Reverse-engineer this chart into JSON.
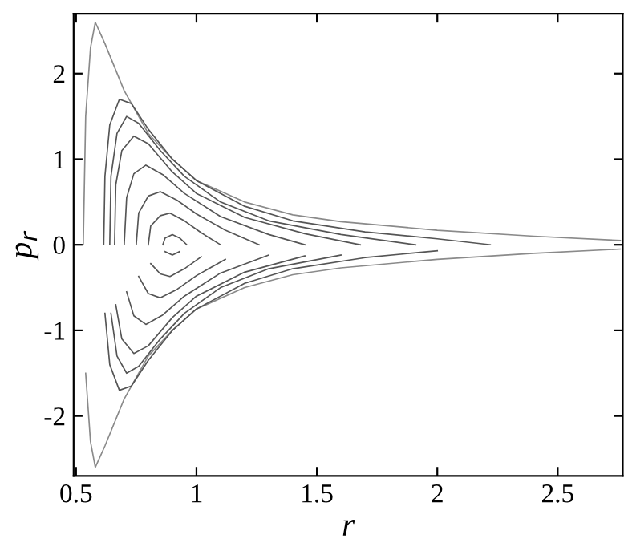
{
  "chart_data": {
    "type": "line",
    "xlabel": "r",
    "ylabel": "p$_{r}$",
    "xlim": [
      0.49,
      2.77
    ],
    "ylim": [
      -2.7,
      2.7
    ],
    "xticks": [
      0.5,
      1,
      1.5,
      2,
      2.5
    ],
    "yticks": [
      -2,
      -1,
      0,
      1,
      2
    ],
    "grid": false,
    "legend": false,
    "series": [
      {
        "color": "#8a8a8a",
        "x": [
          0.53,
          0.54,
          0.56,
          0.58,
          0.62,
          0.7,
          0.8,
          0.9,
          1.0,
          1.2,
          1.4,
          1.6,
          2.0,
          2.4,
          2.76
        ],
        "values": [
          0,
          1.5,
          2.3,
          2.6,
          2.35,
          1.8,
          1.3,
          1.0,
          0.75,
          0.5,
          0.35,
          0.27,
          0.17,
          0.1,
          0.05
        ]
      },
      {
        "color": "#8a8a8a",
        "x": [
          0.54,
          0.56,
          0.58,
          0.62,
          0.7,
          0.8,
          0.9,
          1.0,
          1.2,
          1.4,
          1.6,
          2.0,
          2.4,
          2.76
        ],
        "values": [
          -1.5,
          -2.3,
          -2.6,
          -2.35,
          -1.8,
          -1.3,
          -1.0,
          -0.75,
          -0.5,
          -0.35,
          -0.27,
          -0.17,
          -0.1,
          -0.05
        ]
      },
      {
        "color": "#555555",
        "x": [
          0.615,
          0.62,
          0.64,
          0.68,
          0.73,
          0.8,
          0.9,
          1.0,
          1.2,
          1.4,
          1.7,
          2.0,
          2.22
        ],
        "values": [
          0,
          0.8,
          1.4,
          1.7,
          1.65,
          1.35,
          1.0,
          0.75,
          0.45,
          0.28,
          0.15,
          0.07,
          0
        ]
      },
      {
        "color": "#555555",
        "x": [
          0.62,
          0.64,
          0.68,
          0.73,
          0.8,
          0.9,
          1.0,
          1.2,
          1.4,
          1.7,
          2.0
        ],
        "values": [
          -0.8,
          -1.4,
          -1.7,
          -1.65,
          -1.35,
          -1.0,
          -0.75,
          -0.45,
          -0.28,
          -0.15,
          -0.07
        ]
      },
      {
        "color": "#555555",
        "x": [
          0.64,
          0.645,
          0.67,
          0.71,
          0.76,
          0.85,
          0.95,
          1.1,
          1.3,
          1.6,
          1.91
        ],
        "values": [
          0,
          0.8,
          1.3,
          1.5,
          1.42,
          1.1,
          0.8,
          0.5,
          0.28,
          0.12,
          0
        ]
      },
      {
        "color": "#555555",
        "x": [
          0.645,
          0.67,
          0.71,
          0.76,
          0.85,
          0.95,
          1.1,
          1.3,
          1.6
        ],
        "values": [
          -0.8,
          -1.3,
          -1.5,
          -1.42,
          -1.1,
          -0.8,
          -0.5,
          -0.28,
          -0.12
        ]
      },
      {
        "color": "#555555",
        "x": [
          0.66,
          0.665,
          0.69,
          0.74,
          0.8,
          0.9,
          1.0,
          1.2,
          1.45,
          1.68
        ],
        "values": [
          0,
          0.7,
          1.1,
          1.27,
          1.18,
          0.85,
          0.6,
          0.32,
          0.13,
          0
        ]
      },
      {
        "color": "#555555",
        "x": [
          0.665,
          0.69,
          0.74,
          0.8,
          0.9,
          1.0,
          1.2,
          1.45
        ],
        "values": [
          -0.7,
          -1.1,
          -1.27,
          -1.18,
          -0.85,
          -0.6,
          -0.32,
          -0.13
        ]
      },
      {
        "color": "#555555",
        "x": [
          0.7,
          0.71,
          0.74,
          0.79,
          0.86,
          0.95,
          1.1,
          1.3,
          1.45
        ],
        "values": [
          0,
          0.55,
          0.83,
          0.93,
          0.82,
          0.6,
          0.33,
          0.12,
          0
        ]
      },
      {
        "color": "#555555",
        "x": [
          0.71,
          0.74,
          0.79,
          0.86,
          0.95,
          1.1,
          1.3
        ],
        "values": [
          -0.55,
          -0.83,
          -0.93,
          -0.82,
          -0.6,
          -0.33,
          -0.12
        ]
      },
      {
        "color": "#555555",
        "x": [
          0.75,
          0.76,
          0.8,
          0.85,
          0.92,
          1.0,
          1.12,
          1.26
        ],
        "values": [
          0,
          0.37,
          0.57,
          0.62,
          0.52,
          0.36,
          0.17,
          0
        ]
      },
      {
        "color": "#555555",
        "x": [
          0.76,
          0.8,
          0.85,
          0.92,
          1.0,
          1.12
        ],
        "values": [
          -0.37,
          -0.57,
          -0.62,
          -0.52,
          -0.36,
          -0.17
        ]
      },
      {
        "color": "#555555",
        "x": [
          0.8,
          0.81,
          0.85,
          0.89,
          0.95,
          1.02,
          1.1
        ],
        "values": [
          0,
          0.22,
          0.34,
          0.37,
          0.28,
          0.14,
          0
        ]
      },
      {
        "color": "#555555",
        "x": [
          0.81,
          0.85,
          0.89,
          0.95,
          1.02
        ],
        "values": [
          -0.22,
          -0.34,
          -0.37,
          -0.28,
          -0.14
        ]
      },
      {
        "color": "#555555",
        "x": [
          0.86,
          0.87,
          0.9,
          0.93,
          0.96
        ],
        "values": [
          0,
          0.08,
          0.12,
          0.08,
          0
        ]
      },
      {
        "color": "#555555",
        "x": [
          0.87,
          0.9,
          0.93
        ],
        "values": [
          -0.08,
          -0.12,
          -0.08
        ]
      }
    ]
  }
}
